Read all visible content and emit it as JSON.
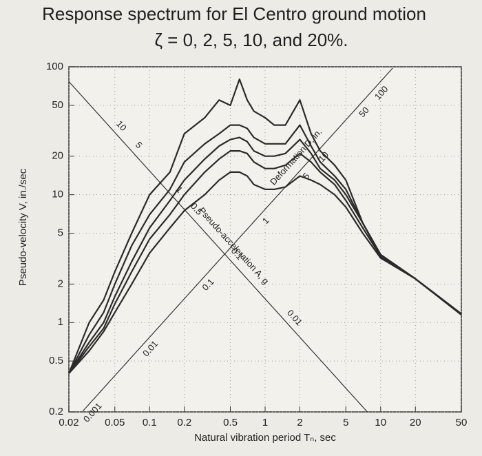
{
  "chart_data": {
    "type": "line",
    "title": "Response spectrum for El Centro ground motion",
    "subtitle": "ζ = 0, 2, 5, 10, and 20%.",
    "xlabel": "Natural vibration period Tₙ, sec",
    "ylabel": "Pseudo-velocity V, in./sec",
    "xscale": "log",
    "yscale": "log",
    "grid": true,
    "xlim": [
      0.02,
      50
    ],
    "ylim": [
      0.2,
      100
    ],
    "xticks": [
      0.02,
      0.05,
      0.1,
      0.2,
      0.5,
      1,
      2,
      5,
      10,
      20,
      50
    ],
    "yticks": [
      0.2,
      0.5,
      1,
      2,
      5,
      10,
      20,
      50,
      100
    ],
    "x": [
      0.02,
      0.03,
      0.04,
      0.05,
      0.07,
      0.1,
      0.15,
      0.2,
      0.3,
      0.4,
      0.5,
      0.6,
      0.7,
      0.8,
      1,
      1.2,
      1.5,
      2,
      2.5,
      3,
      4,
      5,
      7,
      10,
      20,
      50
    ],
    "series": [
      {
        "color": "#2a2a2a",
        "values": [
          0.4,
          1,
          1.5,
          2.5,
          5,
          10,
          15,
          30,
          40,
          55,
          50,
          80,
          55,
          45,
          40,
          35,
          35,
          55,
          30,
          22,
          17,
          13,
          6,
          3.4,
          2.2,
          1.17
        ]
      },
      {
        "color": "#2a2a2a",
        "values": [
          0.4,
          0.8,
          1.2,
          2,
          4,
          7,
          11,
          18,
          25,
          30,
          35,
          35,
          33,
          28,
          25,
          25,
          25,
          35,
          24,
          18,
          14,
          11,
          6,
          3.4,
          2.2,
          1.17
        ]
      },
      {
        "color": "#2a2a2a",
        "values": [
          0.4,
          0.7,
          1,
          1.6,
          3,
          5.5,
          9,
          13,
          19,
          24,
          27,
          28,
          26,
          22,
          20,
          20,
          21,
          27,
          21,
          16,
          13,
          10,
          6,
          3.3,
          2.2,
          1.16
        ]
      },
      {
        "color": "#2a2a2a",
        "values": [
          0.4,
          0.65,
          0.9,
          1.4,
          2.5,
          4.5,
          7,
          10,
          15,
          19,
          22,
          22,
          21,
          18,
          16,
          16,
          17,
          21,
          18,
          15,
          12,
          9,
          5.5,
          3.3,
          2.2,
          1.15
        ]
      },
      {
        "color": "#2a2a2a",
        "values": [
          0.4,
          0.6,
          0.85,
          1.2,
          2,
          3.5,
          5.5,
          7.5,
          10,
          13,
          15,
          15,
          14,
          12,
          11,
          11,
          11.5,
          14,
          13,
          12,
          10,
          8,
          5,
          3.2,
          2.2,
          1.15
        ]
      }
    ],
    "acceleration_axis": {
      "label": "Pseudo-acceleration A, g",
      "ticks": [
        10,
        5,
        1,
        0.5,
        0.1,
        0.01
      ]
    },
    "deformation_axis": {
      "label": "Deformation D, in.",
      "ticks": [
        100,
        50,
        10,
        5,
        1,
        0.1,
        0.01,
        0.001
      ]
    }
  }
}
